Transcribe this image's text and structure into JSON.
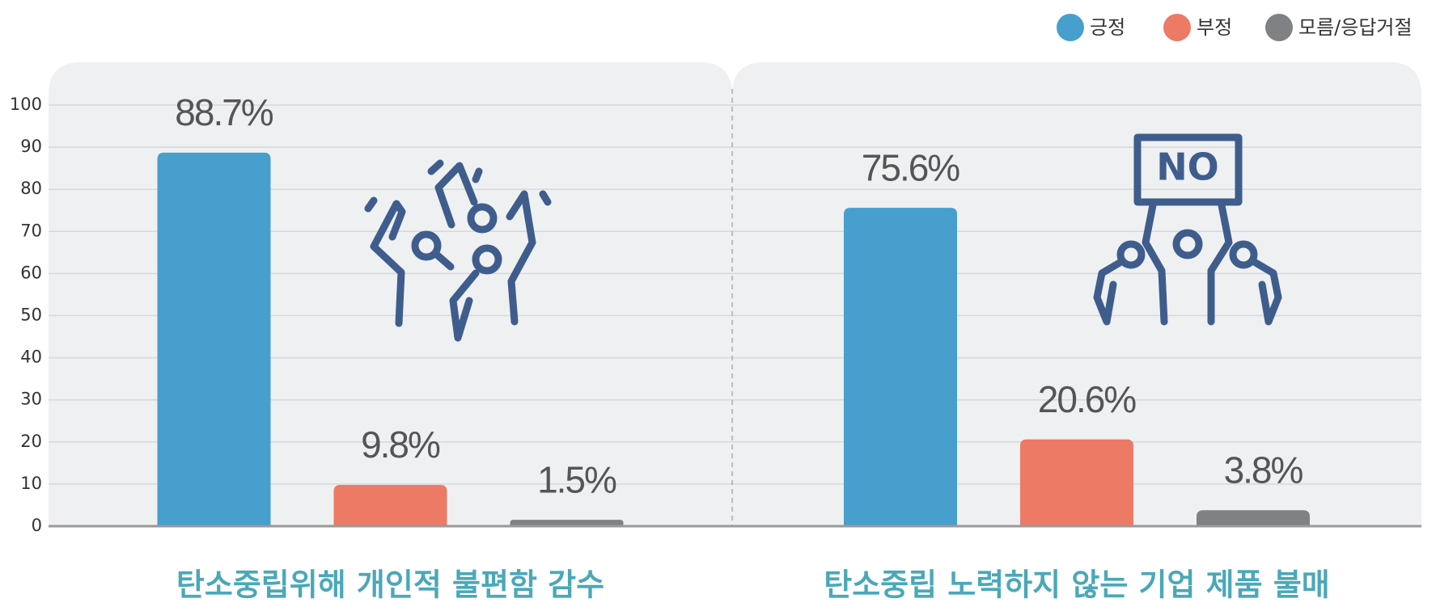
{
  "chart_data": {
    "type": "bar",
    "categories": [
      "탄소중립위해 개인적 불편함 감수",
      "탄소중립 노력하지 않는 기업 제품 불매"
    ],
    "series": [
      {
        "name": "긍정",
        "color": "#479fcd",
        "values": [
          88.7,
          75.6
        ],
        "value_labels": [
          "88.7%",
          "75.6%"
        ]
      },
      {
        "name": "부정",
        "color": "#ec7a65",
        "values": [
          9.8,
          20.6
        ],
        "value_labels": [
          "9.8%",
          "20.6%"
        ]
      },
      {
        "name": "모름/응답거절",
        "color": "#808184",
        "values": [
          1.5,
          3.8
        ],
        "value_labels": [
          "1.5%",
          "3.8%"
        ]
      }
    ],
    "ylim": [
      0,
      100
    ],
    "yticks": [
      0,
      10,
      20,
      30,
      40,
      50,
      60,
      70,
      80,
      90,
      100
    ],
    "grid": true
  }
}
